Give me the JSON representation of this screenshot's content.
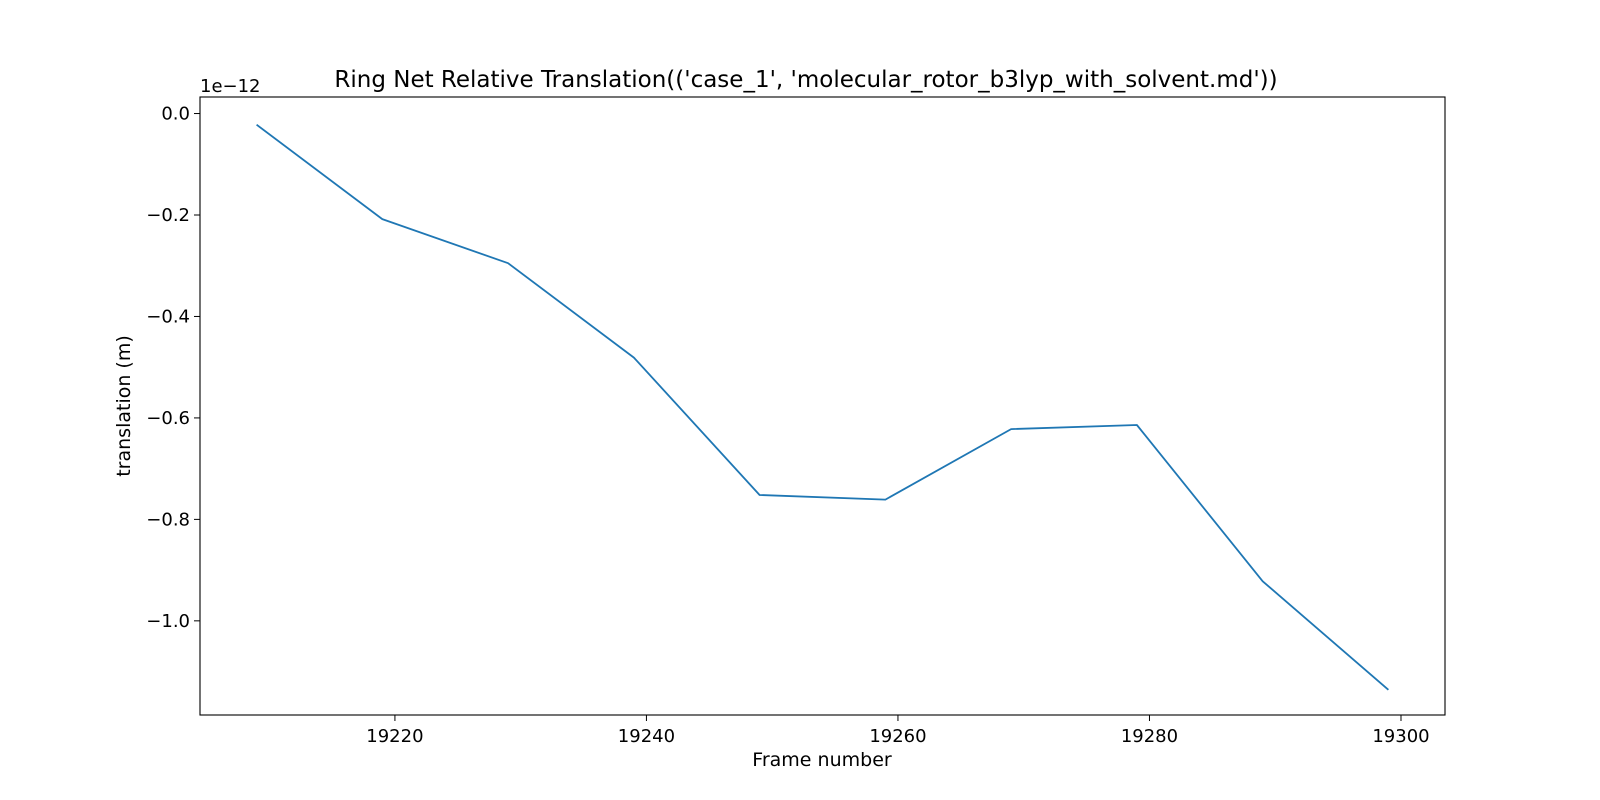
{
  "chart_data": {
    "type": "line",
    "title": "Ring Net Relative Translation(('case_1', 'molecular_rotor_b3lyp_with_solvent.md'))",
    "xlabel": "Frame number",
    "ylabel": "translation (m)",
    "y_offset_label": "1e−12",
    "xlim": [
      19204.5,
      19303.5
    ],
    "ylim": [
      -1.1856,
      0.0326
    ],
    "x_ticks": [
      19220,
      19240,
      19260,
      19280,
      19300
    ],
    "y_ticks": [
      0.0,
      -0.2,
      -0.4,
      -0.6,
      -0.8,
      -1.0
    ],
    "y_tick_labels": [
      "0.0",
      "−0.2",
      "−0.4",
      "−0.6",
      "−0.8",
      "−1.0"
    ],
    "grid": false,
    "series": [
      {
        "color": "#1f77b4",
        "x": [
          19209,
          19219,
          19229,
          19239,
          19249,
          19259,
          19269,
          19279,
          19289,
          19299
        ],
        "y": [
          -0.022,
          -0.208,
          -0.295,
          -0.481,
          -0.752,
          -0.761,
          -0.622,
          -0.614,
          -0.922,
          -1.136
        ]
      }
    ]
  }
}
